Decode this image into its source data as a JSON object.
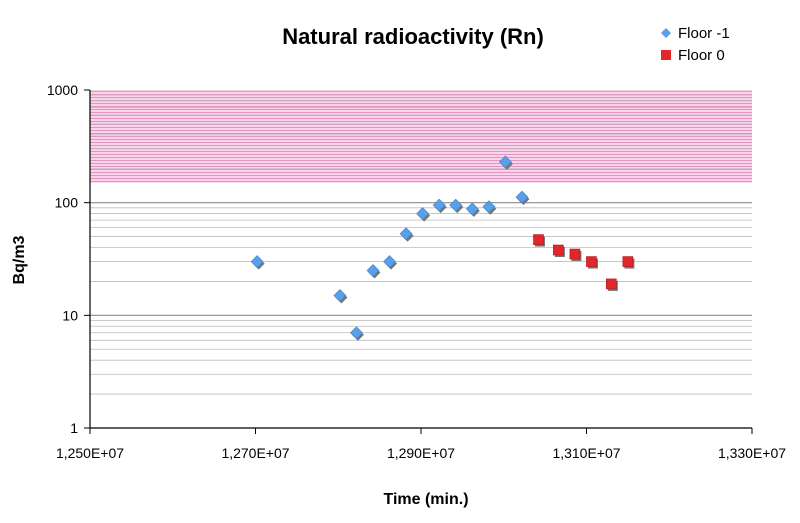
{
  "chart_data": {
    "type": "scatter",
    "title": "Natural radioactivity (Rn)",
    "xlabel": "Time (min.)",
    "ylabel": "Bq/m3",
    "y_scale": "log",
    "xlim": [
      12500000,
      13300000
    ],
    "ylim": [
      1,
      1000
    ],
    "x_ticks": [
      12500000,
      12700000,
      12900000,
      13100000,
      13300000
    ],
    "x_tick_labels": [
      "1,250E+07",
      "1,270E+07",
      "1,290E+07",
      "1,310E+07",
      "1,330E+07"
    ],
    "y_ticks": [
      1,
      10,
      100,
      1000
    ],
    "y_tick_labels": [
      "1",
      "10",
      "100",
      "1000"
    ],
    "grid": "horizontal-minor-and-major",
    "legend_position": "top-right",
    "highlight_band": {
      "y_from": 150,
      "y_to": 1000,
      "color": "#e4007c"
    },
    "series": [
      {
        "name": "Floor -1",
        "marker": "diamond",
        "color": "#5aa0e8",
        "points": [
          [
            12702000,
            30
          ],
          [
            12802000,
            15
          ],
          [
            12822000,
            7
          ],
          [
            12842000,
            25
          ],
          [
            12862000,
            30
          ],
          [
            12882000,
            53
          ],
          [
            12902000,
            80
          ],
          [
            12922000,
            95
          ],
          [
            12942000,
            95
          ],
          [
            12962000,
            88
          ],
          [
            12982000,
            92
          ],
          [
            13002000,
            230
          ],
          [
            13022000,
            112
          ]
        ]
      },
      {
        "name": "Floor 0",
        "marker": "square",
        "color": "#e2272b",
        "points": [
          [
            13042000,
            47
          ],
          [
            13066000,
            38
          ],
          [
            13086000,
            35
          ],
          [
            13106000,
            30
          ],
          [
            13130000,
            19
          ],
          [
            13150000,
            30
          ]
        ]
      }
    ]
  }
}
